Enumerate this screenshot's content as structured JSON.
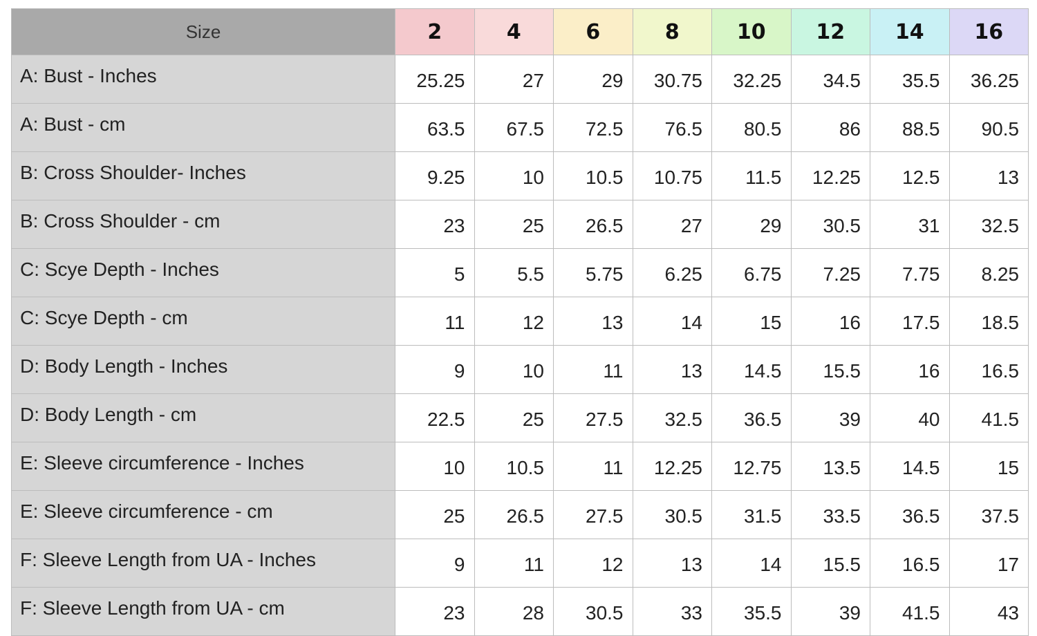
{
  "table": {
    "corner_label": "Size",
    "columns": [
      {
        "label": "2",
        "color": "#f4c9cd"
      },
      {
        "label": "4",
        "color": "#f9dada"
      },
      {
        "label": "6",
        "color": "#fbeec8"
      },
      {
        "label": "8",
        "color": "#f1f7cc"
      },
      {
        "label": "10",
        "color": "#d8f6c8"
      },
      {
        "label": "12",
        "color": "#c9f6e1"
      },
      {
        "label": "14",
        "color": "#c9f1f5"
      },
      {
        "label": "16",
        "color": "#dcd8f6"
      }
    ],
    "rows": [
      {
        "label": "A: Bust - Inches",
        "values": [
          "25.25",
          "27",
          "29",
          "30.75",
          "32.25",
          "34.5",
          "35.5",
          "36.25"
        ]
      },
      {
        "label": "A: Bust - cm",
        "values": [
          "63.5",
          "67.5",
          "72.5",
          "76.5",
          "80.5",
          "86",
          "88.5",
          "90.5"
        ]
      },
      {
        "label": "B: Cross Shoulder- Inches",
        "values": [
          "9.25",
          "10",
          "10.5",
          "10.75",
          "11.5",
          "12.25",
          "12.5",
          "13"
        ]
      },
      {
        "label": "B: Cross Shoulder - cm",
        "values": [
          "23",
          "25",
          "26.5",
          "27",
          "29",
          "30.5",
          "31",
          "32.5"
        ]
      },
      {
        "label": "C: Scye Depth - Inches",
        "values": [
          "5",
          "5.5",
          "5.75",
          "6.25",
          "6.75",
          "7.25",
          "7.75",
          "8.25"
        ]
      },
      {
        "label": "C: Scye Depth - cm",
        "values": [
          "11",
          "12",
          "13",
          "14",
          "15",
          "16",
          "17.5",
          "18.5"
        ]
      },
      {
        "label": "D: Body Length - Inches",
        "values": [
          "9",
          "10",
          "11",
          "13",
          "14.5",
          "15.5",
          "16",
          "16.5"
        ]
      },
      {
        "label": "D: Body Length - cm",
        "values": [
          "22.5",
          "25",
          "27.5",
          "32.5",
          "36.5",
          "39",
          "40",
          "41.5"
        ]
      },
      {
        "label": "E: Sleeve circumference - Inches",
        "values": [
          "10",
          "10.5",
          "11",
          "12.25",
          "12.75",
          "13.5",
          "14.5",
          "15"
        ]
      },
      {
        "label": "E: Sleeve circumference - cm",
        "values": [
          "25",
          "26.5",
          "27.5",
          "30.5",
          "31.5",
          "33.5",
          "36.5",
          "37.5"
        ]
      },
      {
        "label": "F: Sleeve Length from UA - Inches",
        "values": [
          "9",
          "11",
          "12",
          "13",
          "14",
          "15.5",
          "16.5",
          "17"
        ]
      },
      {
        "label": "F: Sleeve Length from UA - cm",
        "values": [
          "23",
          "28",
          "30.5",
          "33",
          "35.5",
          "39",
          "41.5",
          "43"
        ]
      }
    ]
  }
}
